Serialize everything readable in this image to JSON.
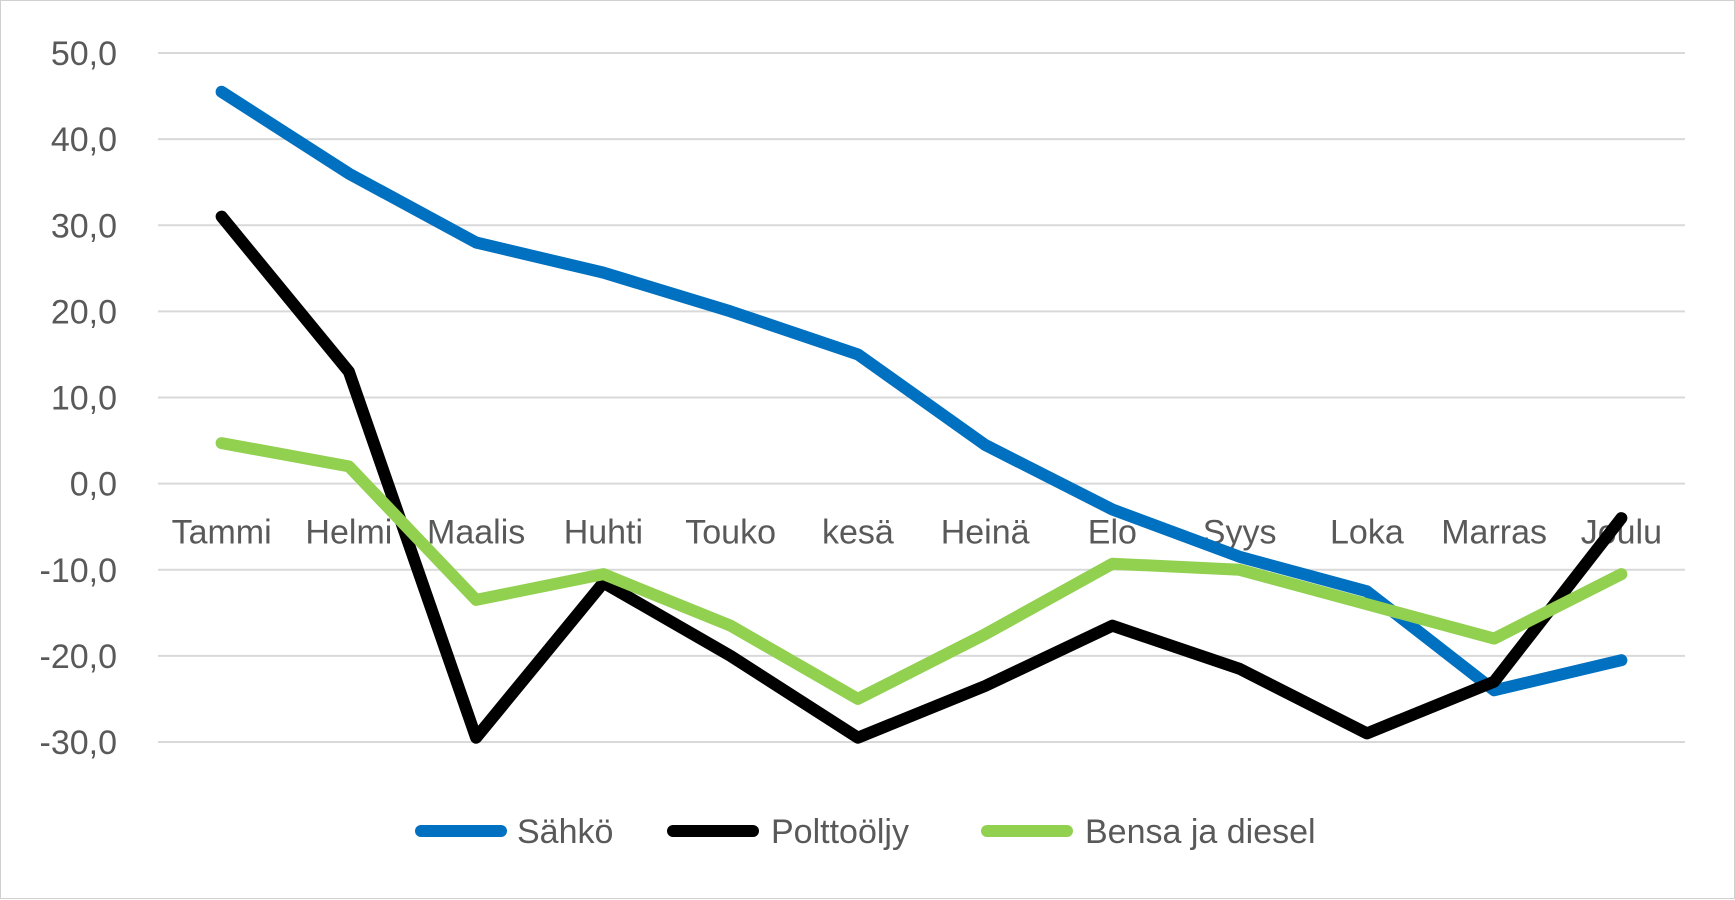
{
  "chart_data": {
    "type": "line",
    "title": "",
    "xlabel": "",
    "ylabel": "",
    "categories": [
      "Tammi",
      "Helmi",
      "Maalis",
      "Huhti",
      "Touko",
      "kesä",
      "Heinä",
      "Elo",
      "Syys",
      "Loka",
      "Marras",
      "Joulu"
    ],
    "y_tick_labels": [
      "50,0",
      "40,0",
      "30,0",
      "20,0",
      "10,0",
      "0,0",
      "-10,0",
      "-20,0",
      "-30,0"
    ],
    "ylim": [
      -30,
      50
    ],
    "grid": true,
    "legend_position": "bottom",
    "series": [
      {
        "name": "Sähkö",
        "color": "#0070C0",
        "values": [
          45.5,
          36.0,
          28.0,
          24.5,
          20.0,
          15.0,
          4.5,
          -3.0,
          -8.5,
          -12.5,
          -24.0,
          -20.5
        ]
      },
      {
        "name": "Polttoöljy",
        "color": "#000000",
        "values": [
          31.0,
          13.0,
          -29.5,
          -11.5,
          -20.0,
          -29.5,
          -23.5,
          -16.5,
          -21.5,
          -29.0,
          -23.0,
          -4.0
        ]
      },
      {
        "name": "Bensa ja diesel",
        "color": "#92D050",
        "values": [
          4.7,
          2.0,
          -13.5,
          -10.5,
          -16.5,
          -25.0,
          -17.5,
          -9.3,
          -10.0,
          -14.0,
          -18.0,
          -10.5
        ]
      }
    ]
  }
}
